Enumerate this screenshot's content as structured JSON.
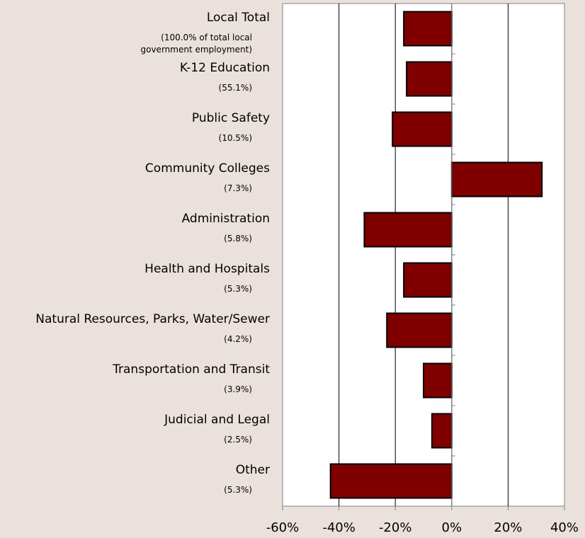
{
  "chart_data": {
    "type": "bar",
    "orientation": "horizontal",
    "categories": [
      "Local Total",
      "K-12 Education",
      "Public Safety",
      "Community Colleges",
      "Administration",
      "Health and Hospitals",
      "Natural Resources, Parks, Water/Sewer",
      "Transportation and Transit",
      "Judicial and Legal",
      "Other"
    ],
    "category_notes": [
      "(100.0% of total local government employment)",
      "(55.1%)",
      "(10.5%)",
      "(7.3%)",
      "(5.8%)",
      "(5.3%)",
      "(4.2%)",
      "(3.9%)",
      "(2.5%)",
      "(5.3%)"
    ],
    "values": [
      -17,
      -16,
      -21,
      32,
      -31,
      -17,
      -23,
      -10,
      -7,
      -43
    ],
    "color": "#800000",
    "xlim": [
      -60,
      40
    ],
    "xticks": [
      {
        "value": -60,
        "label": "-60%"
      },
      {
        "value": -40,
        "label": "-40%"
      },
      {
        "value": -20,
        "label": "-20%"
      },
      {
        "value": 0,
        "label": "0%"
      },
      {
        "value": 20,
        "label": "20%"
      },
      {
        "value": 40,
        "label": "40%"
      }
    ],
    "grid": true
  }
}
